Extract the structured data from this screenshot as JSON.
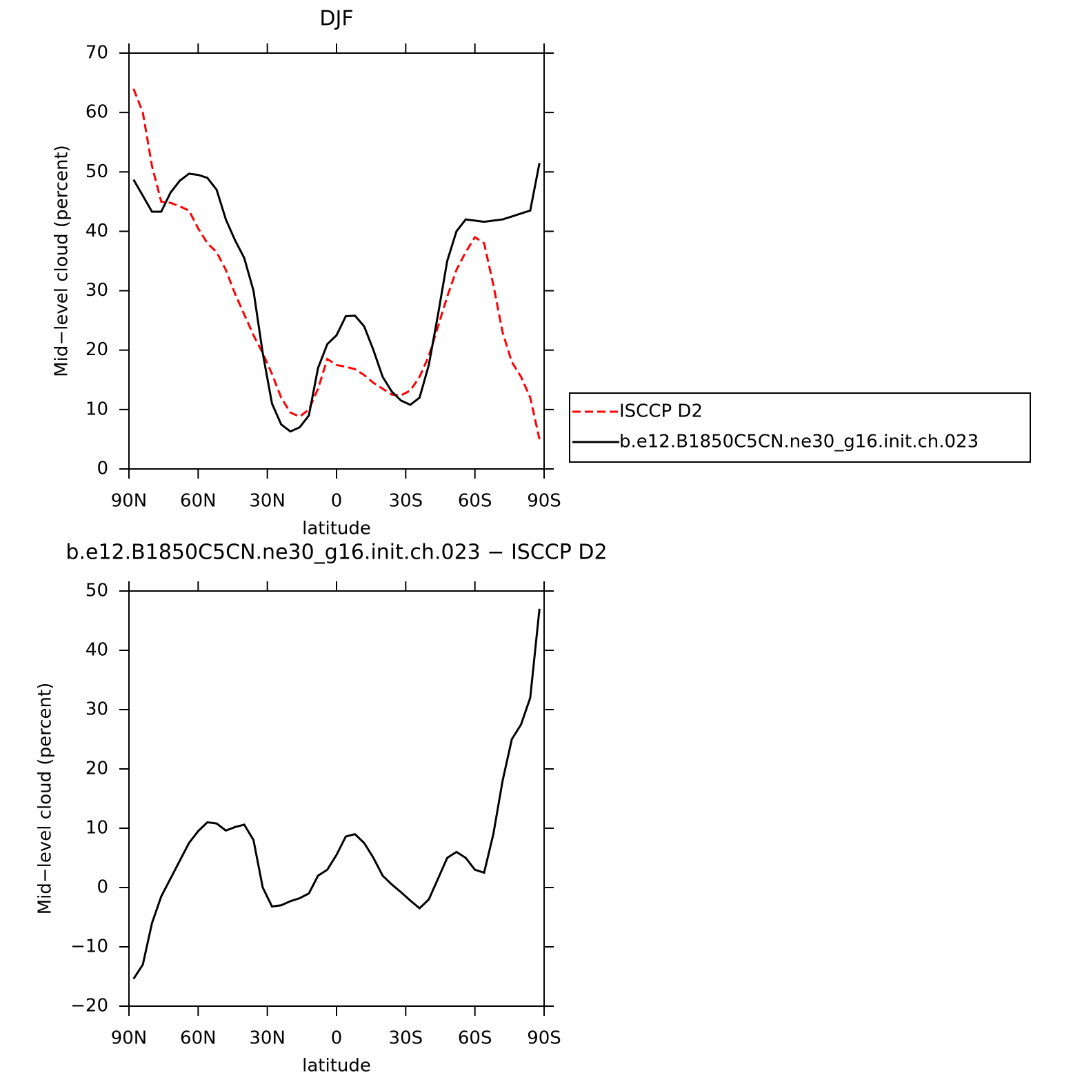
{
  "chart_data": [
    {
      "type": "line",
      "title": "DJF",
      "xlabel": "latitude",
      "ylabel": "Mid−level cloud (percent)",
      "xlim": [
        90,
        -90
      ],
      "xticks": [
        {
          "value": 90,
          "label": "90N"
        },
        {
          "value": 60,
          "label": "60N"
        },
        {
          "value": 30,
          "label": "30N"
        },
        0,
        {
          "value": -30,
          "label": "30S"
        },
        {
          "value": -60,
          "label": "60S"
        },
        {
          "value": -90,
          "label": "90S"
        }
      ],
      "ylim": [
        0,
        70
      ],
      "yticks": [
        0,
        10,
        20,
        30,
        40,
        50,
        60,
        70
      ],
      "legend": "right",
      "x": [
        88,
        84,
        80,
        76,
        72,
        68,
        64,
        60,
        56,
        52,
        48,
        44,
        40,
        36,
        32,
        28,
        24,
        20,
        16,
        12,
        8,
        4,
        0,
        -4,
        -8,
        -12,
        -16,
        -20,
        -24,
        -28,
        -32,
        -36,
        -40,
        -44,
        -48,
        -52,
        -56,
        -60,
        -64,
        -68,
        -72,
        -76,
        -80,
        -84,
        -88
      ],
      "series": [
        {
          "name": "ISCCP D2",
          "color": "#ff0000",
          "dash": true,
          "values": [
            64,
            60,
            51,
            45,
            44.8,
            44.2,
            43.5,
            40.5,
            38,
            36.5,
            33.5,
            29.5,
            26,
            22.5,
            19.5,
            16,
            12,
            9.5,
            8.8,
            10,
            13.5,
            18.5,
            17.5,
            17.2,
            16.8,
            15.8,
            14.5,
            13.5,
            12.5,
            12.4,
            13.2,
            15.5,
            19,
            24,
            29,
            33.5,
            36.5,
            39,
            38,
            31,
            23,
            18,
            15.5,
            12,
            5
          ]
        },
        {
          "name": "b.e12.B1850C5CN.ne30_g16.init.ch.023",
          "color": "#000000",
          "dash": false,
          "values": [
            48.7,
            46,
            43.3,
            43.3,
            46.5,
            48.5,
            49.7,
            49.5,
            49,
            47,
            42,
            38.5,
            35.5,
            30,
            19.5,
            11,
            7.5,
            6.3,
            7,
            9,
            17,
            21,
            22.5,
            25.7,
            25.8,
            24,
            20,
            15.5,
            13,
            11.5,
            10.8,
            12,
            17.5,
            26,
            35,
            40,
            42,
            41.8,
            41.6,
            41.8,
            42,
            42.5,
            43,
            43.5,
            51.5
          ]
        }
      ]
    },
    {
      "type": "line",
      "title": "b.e12.B1850C5CN.ne30_g16.init.ch.023 − ISCCP D2",
      "xlabel": "latitude",
      "ylabel": "Mid−level cloud (percent)",
      "xlim": [
        90,
        -90
      ],
      "xticks": [
        {
          "value": 90,
          "label": "90N"
        },
        {
          "value": 60,
          "label": "60N"
        },
        {
          "value": 30,
          "label": "30N"
        },
        0,
        {
          "value": -30,
          "label": "30S"
        },
        {
          "value": -60,
          "label": "60S"
        },
        {
          "value": -90,
          "label": "90S"
        }
      ],
      "ylim": [
        -20,
        50
      ],
      "yticks": [
        {
          "value": -20,
          "label": "−20"
        },
        {
          "value": -10,
          "label": "−10"
        },
        0,
        10,
        20,
        30,
        40,
        50
      ],
      "x": [
        88,
        84,
        80,
        76,
        72,
        68,
        64,
        60,
        56,
        52,
        48,
        44,
        40,
        36,
        32,
        28,
        24,
        20,
        16,
        12,
        8,
        4,
        0,
        -4,
        -8,
        -12,
        -16,
        -20,
        -24,
        -28,
        -32,
        -36,
        -40,
        -44,
        -48,
        -52,
        -56,
        -60,
        -64,
        -68,
        -72,
        -76,
        -80,
        -84,
        -88
      ],
      "series": [
        {
          "color": "#000000",
          "dash": false,
          "values": [
            -15.4,
            -13,
            -6,
            -1.5,
            1.5,
            4.5,
            7.5,
            9.5,
            11,
            10.8,
            9.6,
            10.2,
            10.6,
            8,
            0,
            -3.2,
            -3,
            -2.3,
            -1.8,
            -1,
            2,
            3,
            5.5,
            8.6,
            9,
            7.5,
            5,
            2,
            0.5,
            -0.8,
            -2.2,
            -3.5,
            -2,
            1.5,
            5,
            6,
            5,
            3,
            2.5,
            9,
            18,
            25,
            27.5,
            32,
            47
          ]
        }
      ]
    }
  ]
}
